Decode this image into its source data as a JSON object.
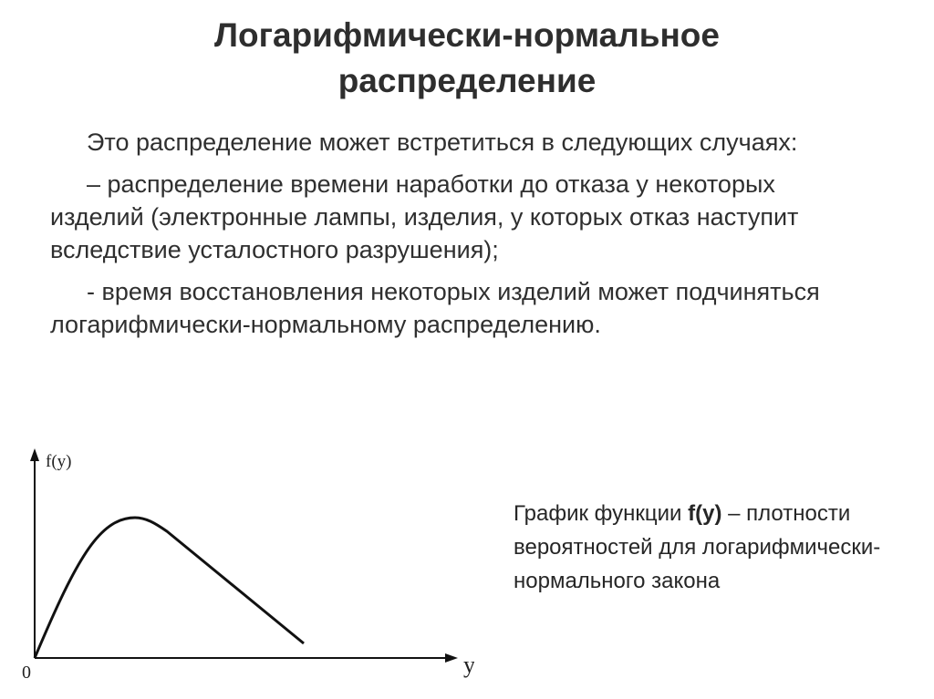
{
  "title": {
    "line1": "Логарифмически-нормальное",
    "line2": "распределение"
  },
  "paragraphs": [
    "Это распределение может встретиться в следующих случаях:",
    "– распределение времени наработки до отказа у некоторых изделий (электронные лампы, изделия, у которых отказ наступит вследствие усталостного разрушения);",
    "- время восстановления некоторых изделий может подчиняться логарифмически-нормальному распределению."
  ],
  "caption": {
    "prefix": "График функции ",
    "func": "f(y)",
    "suffix": " – плотности вероятностей для логарифмически-нормального закона"
  },
  "graph": {
    "y_axis_label": "f(y)",
    "x_axis_label": "y",
    "origin_label": "0"
  },
  "colors": {
    "text": "#2f2f2f",
    "title": "#2e2e2e",
    "curve": "#111111"
  }
}
